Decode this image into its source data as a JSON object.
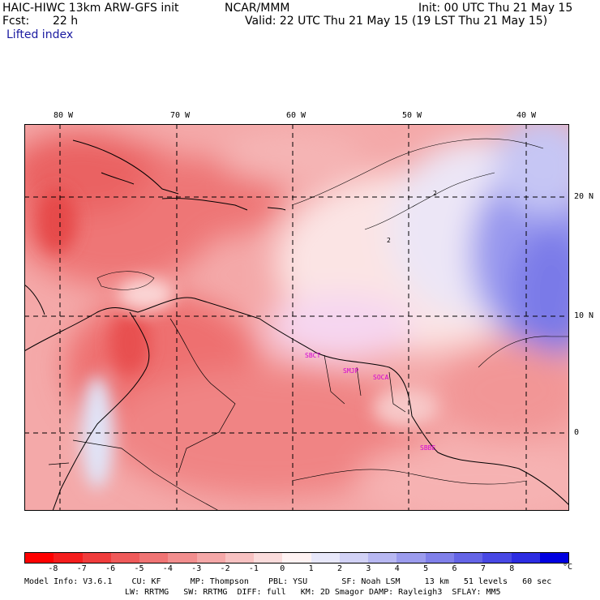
{
  "header": {
    "model": "HAIC-HIWC 13km ARW-GFS init",
    "org": "NCAR/MMM",
    "fcst_label": "Fcst:",
    "fcst_value": "22 h",
    "init": "Init: 00 UTC Thu 21 May 15",
    "valid": "Valid: 22 UTC Thu 21 May 15 (19 LST Thu 21 May 15)",
    "field": "Lifted index"
  },
  "map": {
    "lon_labels": [
      "80 W",
      "70 W",
      "60 W",
      "50 W",
      "40 W"
    ],
    "lat_labels": [
      "20 N",
      "10 N",
      "0"
    ],
    "stations": [
      "SBCT",
      "SMJP",
      "SOCA",
      "SBBE"
    ],
    "contour_labels": [
      "2",
      "2"
    ]
  },
  "colorbar": {
    "colors": [
      "#ff0000",
      "#f51d1d",
      "#f03c3c",
      "#ef5a5a",
      "#f07474",
      "#f28e8e",
      "#f5a8a8",
      "#f8c2c2",
      "#fbdcdc",
      "#fff3f3",
      "#e8e8fa",
      "#d2d2f6",
      "#b8b8f2",
      "#9c9cee",
      "#8080ea",
      "#6464e6",
      "#4848e4",
      "#2c2ce2",
      "#0000e0"
    ],
    "ticks": [
      "-8",
      "-7",
      "-6",
      "-5",
      "-4",
      "-3",
      "-2",
      "-1",
      "0",
      "1",
      "2",
      "3",
      "4",
      "5",
      "6",
      "7",
      "8"
    ],
    "unit": "°C"
  },
  "footer": {
    "line1": "Model Info: V3.6.1    CU: KF      MP: Thompson    PBL: YSU       SF: Noah LSM     13 km   51 levels   60 sec",
    "line2": "LW: RRTMG   SW: RRTMG  DIFF: full   KM: 2D Smagor DAMP: Rayleigh3  SFLAY: MM5"
  }
}
